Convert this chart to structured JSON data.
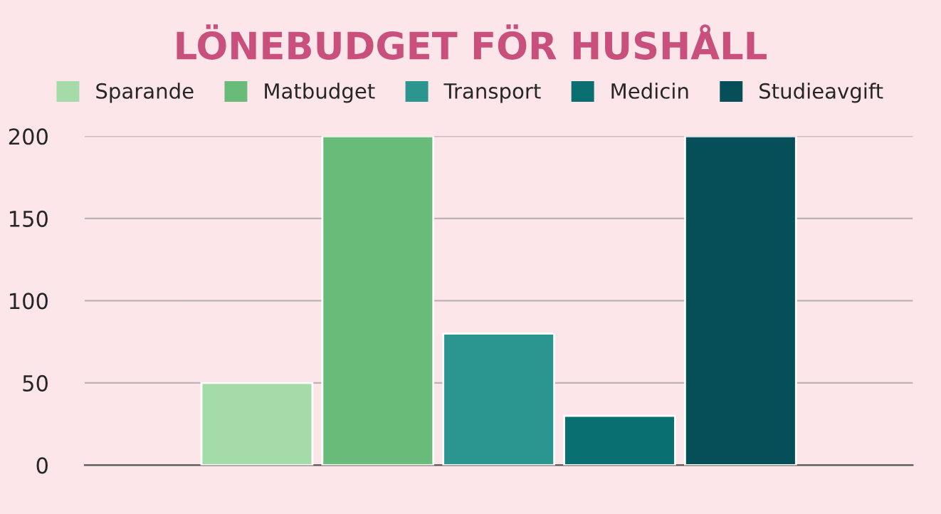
{
  "chart_data": {
    "type": "bar",
    "title": "LÖNEBUDGET FÖR HUSHÅLL",
    "categories": [
      null
    ],
    "series": [
      {
        "name": "Sparande",
        "color": "#a5dba8",
        "values": [
          50
        ]
      },
      {
        "name": "Matbudget",
        "color": "#68bb78",
        "values": [
          200
        ]
      },
      {
        "name": "Transport",
        "color": "#2b968f",
        "values": [
          80
        ]
      },
      {
        "name": "Medicin",
        "color": "#0a6f70",
        "values": [
          30
        ]
      },
      {
        "name": "Studieavgift",
        "color": "#064f59",
        "values": [
          200
        ]
      }
    ],
    "ylim": [
      0,
      200
    ],
    "yticks": [
      0,
      50,
      100,
      150,
      200
    ],
    "grid": "y",
    "legend": "top"
  }
}
